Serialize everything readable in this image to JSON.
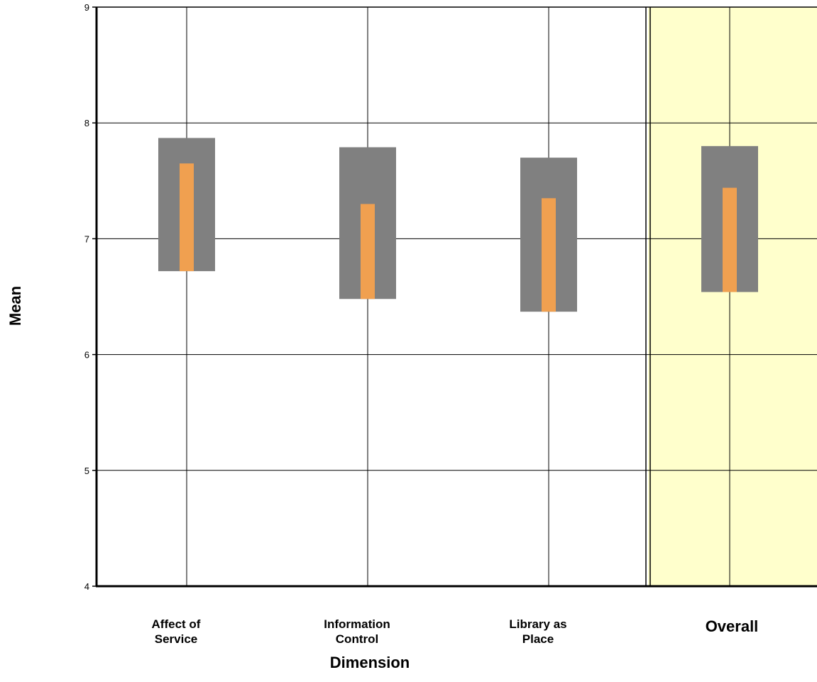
{
  "chart_data": {
    "type": "range-bar",
    "xlabel": "Dimension",
    "ylabel": "Mean",
    "ylim": [
      4,
      9
    ],
    "yticks": [
      "4",
      "5",
      "6",
      "7",
      "8",
      "9"
    ],
    "grid": true,
    "categories": [
      [
        "Affect of",
        "Service"
      ],
      [
        "Information",
        "Control"
      ],
      [
        "Library as",
        "Place"
      ],
      [
        "Overall"
      ]
    ],
    "series": [
      {
        "values_low": [
          6.72,
          6.48,
          6.37,
          6.54
        ],
        "values_high": [
          7.87,
          7.79,
          7.7,
          7.8
        ]
      },
      {
        "values_low": [
          6.72,
          6.48,
          6.37,
          6.54
        ],
        "values_high": [
          7.65,
          7.3,
          7.35,
          7.44
        ]
      }
    ],
    "highlight_category": "Overall",
    "colors": {
      "outer_bar": "#808080",
      "inner_bar": "#f0a050",
      "highlight_bg": "#ffffcc",
      "grid": "#000000"
    }
  }
}
